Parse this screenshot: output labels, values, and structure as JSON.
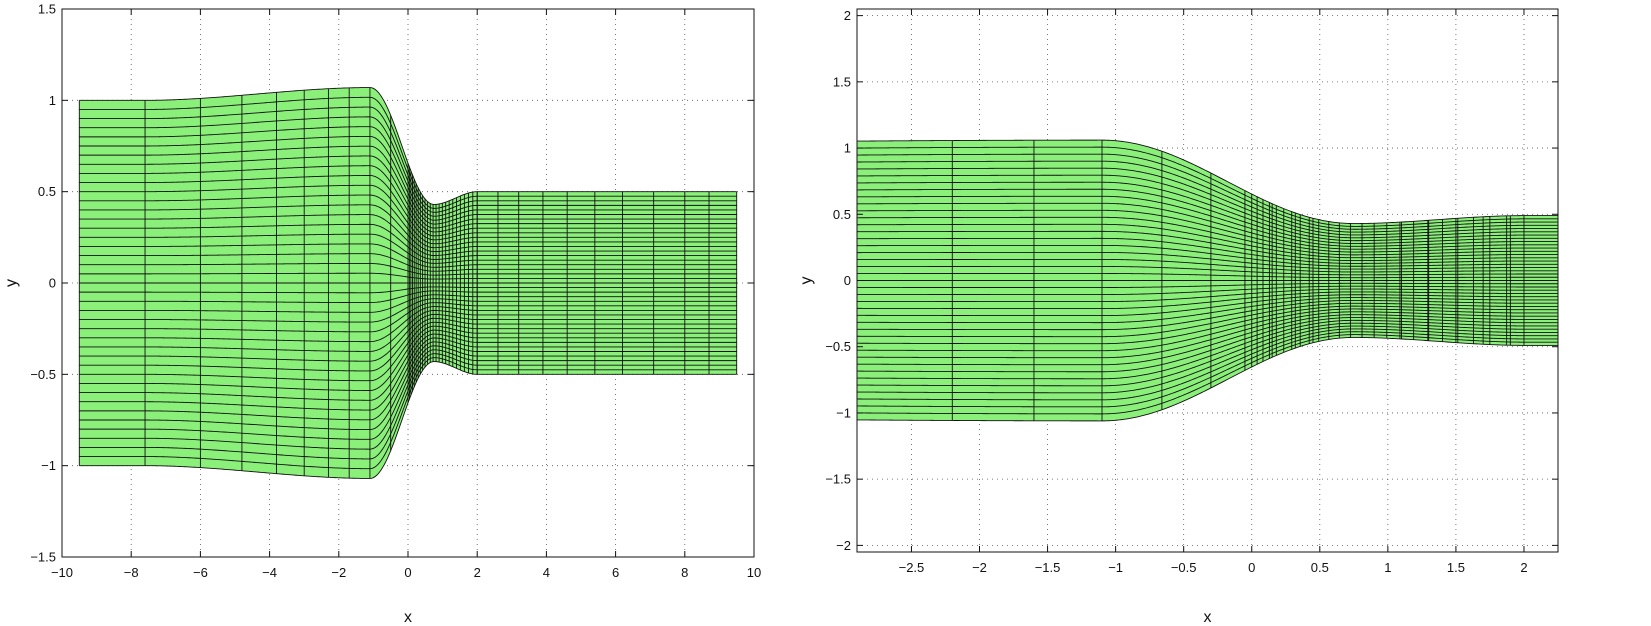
{
  "chart_data": [
    {
      "type": "mesh",
      "xlabel": "x",
      "ylabel": "y",
      "xlim": [
        -10,
        10
      ],
      "ylim": [
        -1.5,
        1.5
      ],
      "xticks": [
        -10,
        -8,
        -6,
        -4,
        -2,
        0,
        2,
        4,
        6,
        8,
        10
      ],
      "yticks": [
        -1.5,
        -1,
        -0.5,
        0,
        0.5,
        1,
        1.5
      ],
      "xtick_labels": [
        "−10",
        "−8",
        "−6",
        "−4",
        "−2",
        "0",
        "2",
        "4",
        "6",
        "8",
        "10"
      ],
      "ytick_labels": [
        "−1.5",
        "−1",
        "−0.5",
        "0",
        "0.5",
        "1",
        "1.5"
      ],
      "grid": true,
      "fill_color": "#8af07a",
      "line_color": "#111111",
      "domain_x": [
        -9.5,
        9.5
      ],
      "inlet_half_height": 1.0,
      "outlet_half_height": 0.5,
      "throat_half_height": 0.43,
      "throat_x": 0.75,
      "bulge_half_height": 1.07,
      "bulge_x": -1.1,
      "vertical_lines_x": [
        -9.5,
        -7.6,
        -6.0,
        -4.8,
        -3.8,
        -3.0,
        -2.3,
        -1.7,
        -1.1,
        -0.5,
        2.0,
        2.6,
        3.2,
        3.9,
        4.6,
        5.4,
        6.2,
        7.1,
        8.0,
        8.7,
        9.5
      ],
      "horizontal_line_count": 40
    },
    {
      "type": "mesh",
      "xlabel": "x",
      "ylabel": "y",
      "xlim": [
        -2.9,
        2.25
      ],
      "ylim": [
        -2.05,
        2.05
      ],
      "xticks": [
        -2.5,
        -2,
        -1.5,
        -1,
        -0.5,
        0,
        0.5,
        1,
        1.5,
        2
      ],
      "yticks": [
        -2,
        -1.5,
        -1,
        -0.5,
        0,
        0.5,
        1,
        1.5,
        2
      ],
      "xtick_labels": [
        "−2.5",
        "−2",
        "−1.5",
        "−1",
        "−0.5",
        "0",
        "0.5",
        "1",
        "1.5",
        "2"
      ],
      "ytick_labels": [
        "−2",
        "−1.5",
        "−1",
        "−0.5",
        "0",
        "0.5",
        "1",
        "1.5",
        "2"
      ],
      "grid": true,
      "fill_color": "#8af07a",
      "line_color": "#111111",
      "domain_x": [
        -2.9,
        2.25
      ],
      "inlet_half_height": 1.02,
      "outlet_half_height": 0.49,
      "throat_half_height": 0.43,
      "throat_x": 0.75,
      "bulge_half_height": 1.06,
      "bulge_x": -1.1,
      "vertical_lines_x": [
        -2.9,
        -2.2,
        -1.6,
        -1.1,
        -0.66,
        -0.3,
        -0.05,
        0.15,
        0.32,
        0.45,
        1.1,
        1.3,
        1.5,
        1.7,
        1.9,
        2.25
      ],
      "horizontal_line_count": 40
    }
  ]
}
